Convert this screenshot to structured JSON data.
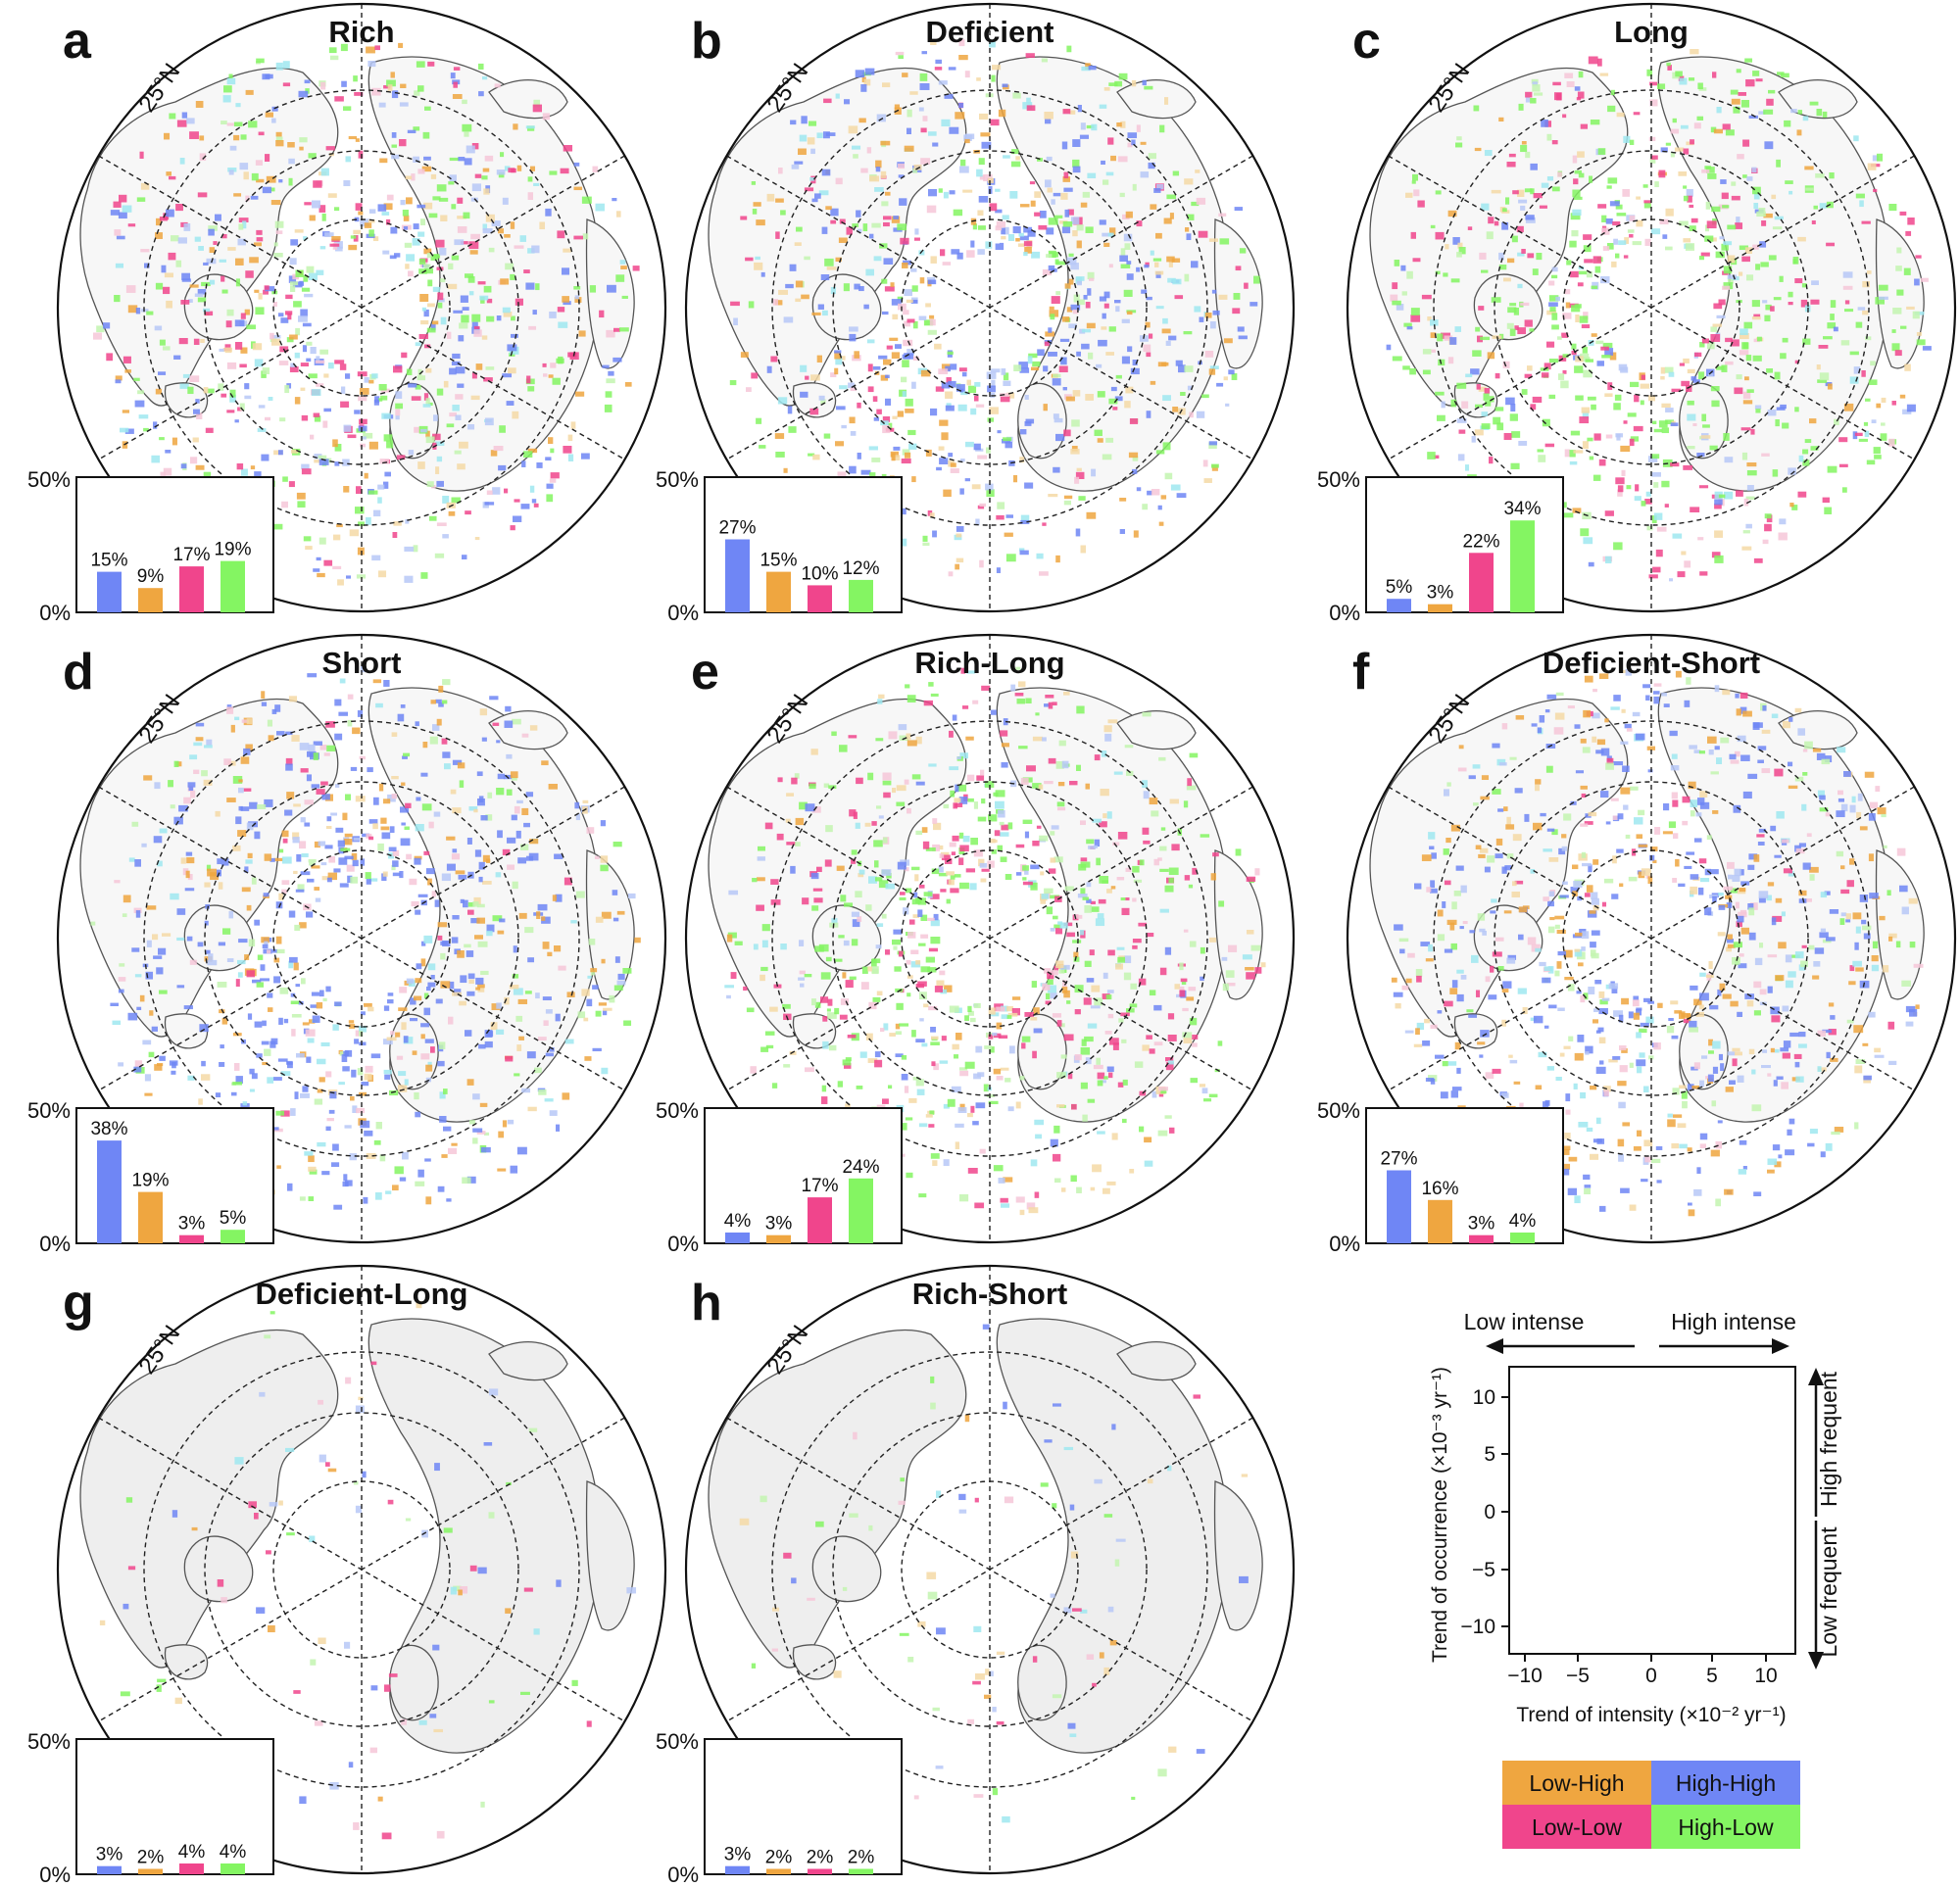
{
  "colors": {
    "high_high": "#6f86f5",
    "low_high": "#efa640",
    "low_low": "#f0458c",
    "high_low": "#84f562",
    "land": "#eeeeee",
    "outline": "#555555"
  },
  "latitude_label": "25°N",
  "y_axis_max_label": "50%",
  "y_axis_min_label": "0%",
  "chart_data": [
    {
      "type": "bar",
      "letter": "a",
      "title": "Rich",
      "categories": [
        "High-High",
        "Low-High",
        "Low-Low",
        "High-Low"
      ],
      "values": [
        15,
        9,
        17,
        19
      ],
      "value_labels": [
        "15%",
        "9%",
        "17%",
        "19%"
      ],
      "ylim": [
        0,
        50
      ]
    },
    {
      "type": "bar",
      "letter": "b",
      "title": "Deficient",
      "categories": [
        "High-High",
        "Low-High",
        "Low-Low",
        "High-Low"
      ],
      "values": [
        27,
        15,
        10,
        12
      ],
      "value_labels": [
        "27%",
        "15%",
        "10%",
        "12%"
      ],
      "ylim": [
        0,
        50
      ]
    },
    {
      "type": "bar",
      "letter": "c",
      "title": "Long",
      "categories": [
        "High-High",
        "Low-High",
        "Low-Low",
        "High-Low"
      ],
      "values": [
        5,
        3,
        22,
        34
      ],
      "value_labels": [
        "5%",
        "3%",
        "22%",
        "34%"
      ],
      "ylim": [
        0,
        50
      ]
    },
    {
      "type": "bar",
      "letter": "d",
      "title": "Short",
      "categories": [
        "High-High",
        "Low-High",
        "Low-Low",
        "High-Low"
      ],
      "values": [
        38,
        19,
        3,
        5
      ],
      "value_labels": [
        "38%",
        "19%",
        "3%",
        "5%"
      ],
      "ylim": [
        0,
        50
      ]
    },
    {
      "type": "bar",
      "letter": "e",
      "title": "Rich-Long",
      "categories": [
        "High-High",
        "Low-High",
        "Low-Low",
        "High-Low"
      ],
      "values": [
        4,
        3,
        17,
        24
      ],
      "value_labels": [
        "4%",
        "3%",
        "17%",
        "24%"
      ],
      "ylim": [
        0,
        50
      ]
    },
    {
      "type": "bar",
      "letter": "f",
      "title": "Deficient-Short",
      "categories": [
        "High-High",
        "Low-High",
        "Low-Low",
        "High-Low"
      ],
      "values": [
        27,
        16,
        3,
        4
      ],
      "value_labels": [
        "27%",
        "16%",
        "3%",
        "4%"
      ],
      "ylim": [
        0,
        50
      ]
    },
    {
      "type": "bar",
      "letter": "g",
      "title": "Deficient-Long",
      "categories": [
        "High-High",
        "Low-High",
        "Low-Low",
        "High-Low"
      ],
      "values": [
        3,
        2,
        4,
        4
      ],
      "value_labels": [
        "3%",
        "2%",
        "4%",
        "4%"
      ],
      "ylim": [
        0,
        50
      ]
    },
    {
      "type": "bar",
      "letter": "h",
      "title": "Rich-Short",
      "categories": [
        "High-High",
        "Low-High",
        "Low-Low",
        "High-Low"
      ],
      "values": [
        3,
        2,
        2,
        2
      ],
      "value_labels": [
        "3%",
        "2%",
        "2%",
        "2%"
      ],
      "ylim": [
        0,
        50
      ]
    }
  ],
  "legend": {
    "low_intense": "Low intense",
    "high_intense": "High intense",
    "high_frequent": "High frequent",
    "low_frequent": "Low frequent",
    "y_label": "Trend of occurrence (×10⁻³ yr⁻¹)",
    "x_label": "Trend of intensity (×10⁻² yr⁻¹)",
    "x_ticks": [
      "−10",
      "−5",
      "0",
      "5",
      "10"
    ],
    "y_ticks": [
      "10",
      "5",
      "0",
      "−5",
      "−10"
    ],
    "class_labels": [
      "Low-High",
      "High-High",
      "Low-Low",
      "High-Low"
    ]
  }
}
